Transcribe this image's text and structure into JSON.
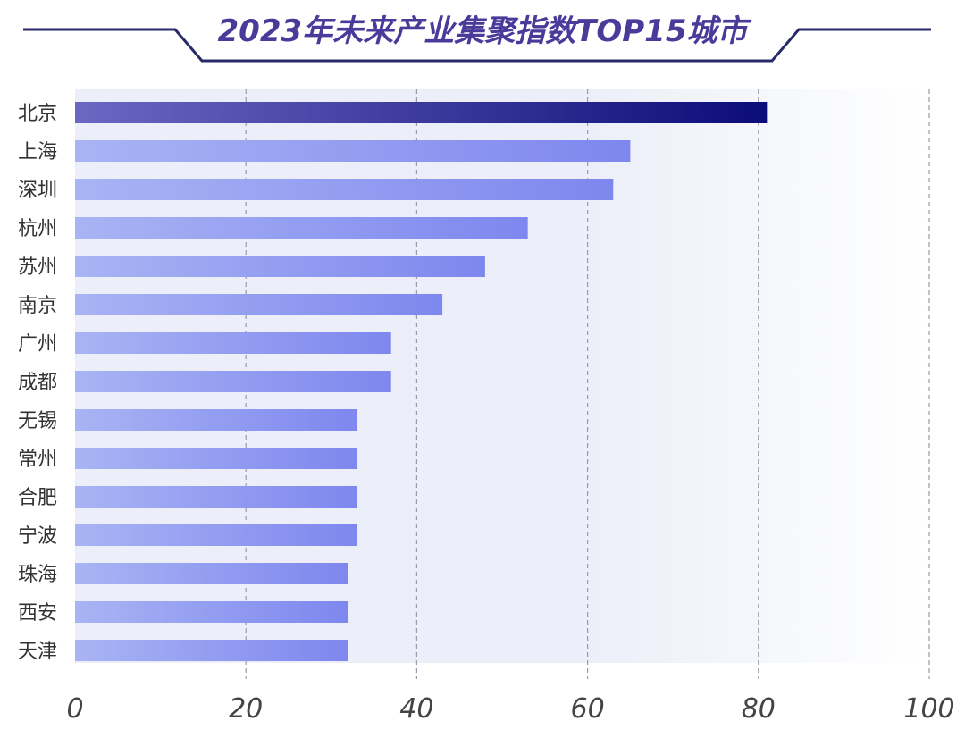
{
  "chart_data": {
    "type": "bar",
    "orientation": "horizontal",
    "title": "2023年未来产业集聚指数TOP15城市",
    "xlabel": "",
    "ylabel": "",
    "categories": [
      "北京",
      "上海",
      "深圳",
      "杭州",
      "苏州",
      "南京",
      "广州",
      "成都",
      "无锡",
      "常州",
      "合肥",
      "宁波",
      "珠海",
      "西安",
      "天津"
    ],
    "values": [
      81,
      65,
      63,
      53,
      48,
      43,
      37,
      37,
      33,
      33,
      33,
      33,
      32,
      32,
      32
    ],
    "xlim": [
      0,
      100
    ],
    "xticks": [
      "0",
      "20",
      "40",
      "60",
      "80",
      "100"
    ],
    "grid": "vertical-dashed",
    "legend": "none",
    "highlight_index": 0
  },
  "colors": {
    "title_text": "#4a3a9a",
    "title_frame": "#2a2a6a",
    "label_text": "#333333",
    "tick_text": "#444444",
    "grid": "#9a9aaa",
    "bar_light": "#a9b4f4",
    "bar_dark": "#7e87ee",
    "highlight_light": "#6b68c2",
    "highlight_dark": "#0c0c78",
    "plot_bg": "#eceff9"
  }
}
